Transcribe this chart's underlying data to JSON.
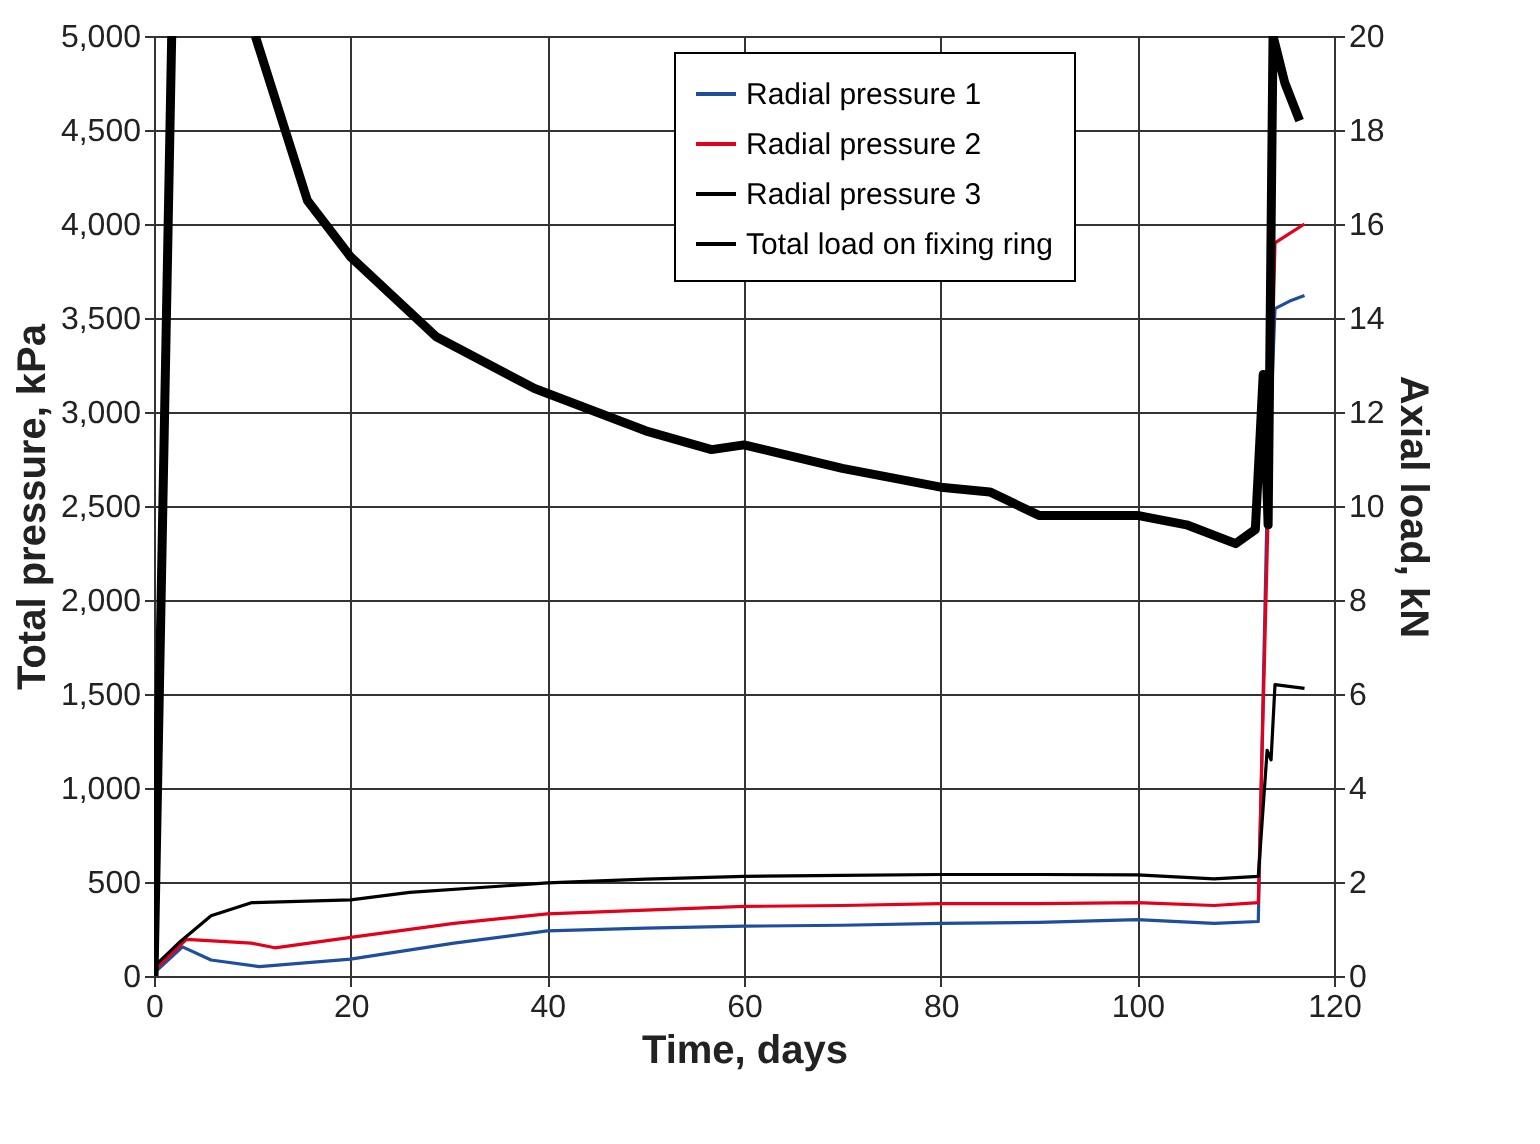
{
  "chart_data": {
    "type": "line",
    "xlabel": "Time, days",
    "ylabel": "Total pressure, kPa",
    "y2label": "Axial load, kN",
    "xlim": [
      0,
      120
    ],
    "xticks": [
      0,
      20,
      40,
      60,
      80,
      100,
      120
    ],
    "ylim": [
      0,
      5000
    ],
    "yticks": [
      0,
      {
        "value": 500,
        "label": "500"
      },
      {
        "value": 1000,
        "label": "1,000"
      },
      {
        "value": 1500,
        "label": "1,500"
      },
      {
        "value": 2000,
        "label": "2,000"
      },
      {
        "value": 2500,
        "label": "2,500"
      },
      {
        "value": 3000,
        "label": "3,000"
      },
      {
        "value": 3500,
        "label": "3,500"
      },
      {
        "value": 4000,
        "label": "4,000"
      },
      {
        "value": 4500,
        "label": "4,500"
      },
      {
        "value": 5000,
        "label": "5,000"
      }
    ],
    "y2lim": [
      0,
      20
    ],
    "y2ticks": [
      0,
      2,
      4,
      6,
      8,
      10,
      12,
      14,
      16,
      18,
      20
    ],
    "grid": true,
    "legend": "top right",
    "marker": "none",
    "line_style": "solid",
    "series": [
      {
        "name": "Radial pressure 1",
        "color": "#1f4e9c",
        "x": [
          0,
          2.9,
          5.8,
          10.7,
          20,
          30.5,
          40,
          50,
          60,
          70,
          80,
          90,
          100,
          107.8,
          112.3,
          113.2,
          114,
          115.5,
          117
        ],
        "values": [
          15,
          155,
          85,
          50,
          90,
          175,
          240,
          255,
          265,
          270,
          280,
          285,
          300,
          280,
          290,
          2500,
          3550,
          3590,
          3620
        ]
      },
      {
        "name": "Radial pressure 2",
        "color": "#e3001b",
        "x": [
          0,
          3.3,
          9.9,
          12.3,
          20,
          30.5,
          40,
          50,
          60,
          70,
          80,
          90,
          100,
          107.8,
          112.3,
          114,
          115.5,
          117
        ],
        "values": [
          30,
          195,
          175,
          150,
          205,
          280,
          330,
          350,
          370,
          375,
          385,
          385,
          390,
          375,
          390,
          3900,
          3950,
          4000
        ]
      },
      {
        "name": "Radial pressure 3",
        "color": "#000000",
        "x": [
          0,
          2.5,
          5.8,
          9.9,
          20,
          26,
          40,
          50,
          60,
          70,
          80,
          90,
          100,
          107.8,
          112.3,
          113.2,
          113.6,
          114,
          117
        ],
        "values": [
          50,
          175,
          320,
          390,
          405,
          445,
          495,
          515,
          530,
          535,
          540,
          540,
          538,
          517,
          530,
          1200,
          1150,
          1550,
          1530
        ]
      },
      {
        "name": "Total load on fixing ring",
        "color": "#000000",
        "axis": "y2",
        "x": [
          0,
          1.8,
          6,
          10.3,
          15.6,
          20,
          28.7,
          38.7,
          50,
          56.7,
          60,
          70,
          80,
          85,
          90,
          95,
          100,
          105,
          110,
          112,
          112.8,
          113.3,
          113.8,
          115,
          116.5
        ],
        "values": [
          0,
          20,
          null,
          20,
          16.5,
          15.3,
          13.6,
          12.5,
          11.6,
          11.2,
          11.3,
          10.8,
          10.4,
          10.3,
          9.8,
          9.8,
          9.8,
          9.6,
          9.2,
          9.5,
          12.8,
          9.6,
          20,
          19,
          18.2
        ]
      }
    ]
  }
}
